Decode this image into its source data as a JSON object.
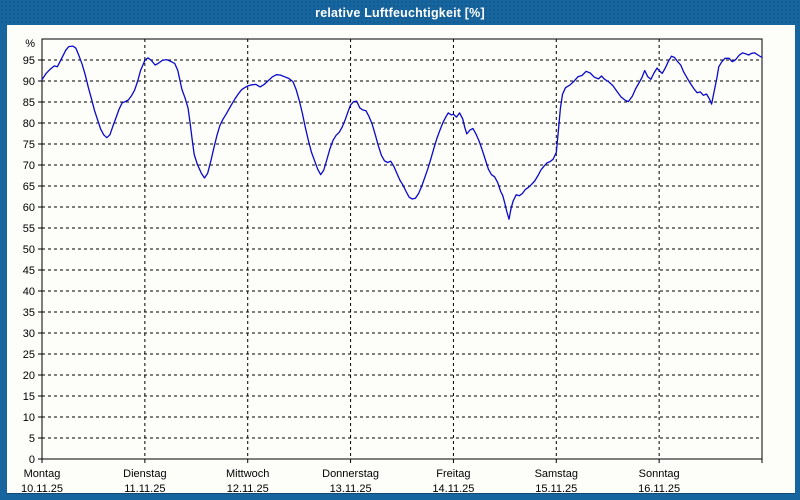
{
  "window": {
    "title": "relative Luftfeuchtigkeit [%]"
  },
  "chart_data": {
    "type": "line",
    "title": "relative Luftfeuchtigkeit [%]",
    "unit_label": "%",
    "ylabel": "relative Luftfeuchtigkeit",
    "ylim": [
      0,
      100
    ],
    "ytick_step": 5,
    "y_ticks": [
      0,
      5,
      10,
      15,
      20,
      25,
      30,
      35,
      40,
      45,
      50,
      55,
      60,
      65,
      70,
      75,
      80,
      85,
      90,
      95
    ],
    "grid": "dashed",
    "grid_color": "#000000",
    "line_color": "#0a0ac8",
    "background_color": "#fdfdfa",
    "frame_color": "#17659e",
    "x_days": [
      {
        "name": "Montag",
        "date": "10.11.25"
      },
      {
        "name": "Dienstag",
        "date": "11.11.25"
      },
      {
        "name": "Mittwoch",
        "date": "12.11.25"
      },
      {
        "name": "Donnerstag",
        "date": "13.11.25"
      },
      {
        "name": "Freitag",
        "date": "14.11.25"
      },
      {
        "name": "Samstag",
        "date": "15.11.25"
      },
      {
        "name": "Sonntag",
        "date": "16.11.25"
      }
    ],
    "series": [
      {
        "name": "relative Luftfeuchtigkeit [%]",
        "x_unit": "days since 10.11.25 00:00",
        "x": [
          0.0,
          0.04,
          0.08,
          0.12,
          0.15,
          0.19,
          0.23,
          0.26,
          0.3,
          0.33,
          0.36,
          0.39,
          0.42,
          0.45,
          0.48,
          0.51,
          0.54,
          0.57,
          0.6,
          0.63,
          0.66,
          0.69,
          0.72,
          0.75,
          0.78,
          0.81,
          0.84,
          0.87,
          0.9,
          0.93,
          0.96,
          1.0,
          1.03,
          1.06,
          1.1,
          1.13,
          1.17,
          1.21,
          1.25,
          1.29,
          1.32,
          1.34,
          1.36,
          1.39,
          1.42,
          1.44,
          1.46,
          1.48,
          1.51,
          1.55,
          1.58,
          1.61,
          1.64,
          1.67,
          1.7,
          1.73,
          1.76,
          1.79,
          1.82,
          1.85,
          1.88,
          1.91,
          1.94,
          1.97,
          2.0,
          2.04,
          2.08,
          2.12,
          2.16,
          2.2,
          2.24,
          2.28,
          2.32,
          2.36,
          2.4,
          2.44,
          2.47,
          2.5,
          2.53,
          2.56,
          2.59,
          2.62,
          2.65,
          2.68,
          2.71,
          2.74,
          2.77,
          2.8,
          2.83,
          2.86,
          2.89,
          2.92,
          2.95,
          2.98,
          3.0,
          3.03,
          3.06,
          3.09,
          3.12,
          3.15,
          3.18,
          3.21,
          3.24,
          3.27,
          3.3,
          3.33,
          3.36,
          3.39,
          3.42,
          3.45,
          3.48,
          3.51,
          3.54,
          3.57,
          3.6,
          3.63,
          3.66,
          3.69,
          3.72,
          3.75,
          3.78,
          3.81,
          3.84,
          3.87,
          3.9,
          3.93,
          3.95,
          3.98,
          4.0,
          4.03,
          4.06,
          4.09,
          4.11,
          4.13,
          4.16,
          4.19,
          4.22,
          4.25,
          4.28,
          4.31,
          4.34,
          4.37,
          4.4,
          4.43,
          4.46,
          4.48,
          4.5,
          4.52,
          4.54,
          4.56,
          4.58,
          4.61,
          4.64,
          4.67,
          4.7,
          4.73,
          4.76,
          4.79,
          4.82,
          4.85,
          4.88,
          4.91,
          4.94,
          4.97,
          5.0,
          5.02,
          5.04,
          5.06,
          5.09,
          5.13,
          5.17,
          5.21,
          5.25,
          5.29,
          5.33,
          5.37,
          5.41,
          5.44,
          5.47,
          5.51,
          5.55,
          5.59,
          5.63,
          5.67,
          5.7,
          5.74,
          5.77,
          5.8,
          5.83,
          5.86,
          5.89,
          5.92,
          5.95,
          5.98,
          6.0,
          6.03,
          6.06,
          6.09,
          6.12,
          6.15,
          6.18,
          6.21,
          6.24,
          6.28,
          6.31,
          6.34,
          6.37,
          6.4,
          6.43,
          6.46,
          6.49,
          6.51,
          6.53,
          6.56,
          6.58,
          6.61,
          6.64,
          6.68,
          6.71,
          6.74,
          6.78,
          6.81,
          6.84,
          6.87,
          6.9,
          6.93,
          6.96,
          7.0
        ],
        "y": [
          90.3,
          91.8,
          92.8,
          93.6,
          93.4,
          95.3,
          97.3,
          98.2,
          98.3,
          97.8,
          96.0,
          94.0,
          91.5,
          88.5,
          85.8,
          83.0,
          80.8,
          78.6,
          77.2,
          76.5,
          77.2,
          79.3,
          81.3,
          83.3,
          84.8,
          85.1,
          85.5,
          86.5,
          87.8,
          90.0,
          92.6,
          94.9,
          95.5,
          95.0,
          93.8,
          94.2,
          94.9,
          95.1,
          94.7,
          94.2,
          92.5,
          90.3,
          88.0,
          86.0,
          83.5,
          80.0,
          76.0,
          72.5,
          70.2,
          68.0,
          66.9,
          68.0,
          70.8,
          74.0,
          77.0,
          79.4,
          80.9,
          82.1,
          83.4,
          84.7,
          85.9,
          87.0,
          87.9,
          88.4,
          88.8,
          89.1,
          89.2,
          88.6,
          89.2,
          90.1,
          91.0,
          91.5,
          91.4,
          91.0,
          90.6,
          89.8,
          88.0,
          85.5,
          82.5,
          79.0,
          75.8,
          73.0,
          71.0,
          69.0,
          67.7,
          68.8,
          71.3,
          73.9,
          75.9,
          77.1,
          77.8,
          79.1,
          80.9,
          83.0,
          84.3,
          85.1,
          85.2,
          83.6,
          83.1,
          82.9,
          81.5,
          79.7,
          77.2,
          74.6,
          72.3,
          71.0,
          70.6,
          70.9,
          69.7,
          68.0,
          66.4,
          65.2,
          63.7,
          62.3,
          61.9,
          62.1,
          63.2,
          64.8,
          66.9,
          69.0,
          71.4,
          74.0,
          76.4,
          78.4,
          80.2,
          81.6,
          82.4,
          81.9,
          82.1,
          81.4,
          82.4,
          81.0,
          79.0,
          77.4,
          78.3,
          78.7,
          77.3,
          75.7,
          73.6,
          71.3,
          69.0,
          67.7,
          67.2,
          65.8,
          63.7,
          62.7,
          60.8,
          58.8,
          57.1,
          59.6,
          61.4,
          62.9,
          62.7,
          63.2,
          64.2,
          64.7,
          65.4,
          66.2,
          67.4,
          68.8,
          69.7,
          70.5,
          70.8,
          71.4,
          73.0,
          78.0,
          83.5,
          86.8,
          88.4,
          89.0,
          89.9,
          91.0,
          91.3,
          92.3,
          91.9,
          90.9,
          90.5,
          91.2,
          90.4,
          89.8,
          88.9,
          87.5,
          86.2,
          85.4,
          85.1,
          86.4,
          88.1,
          89.4,
          90.7,
          92.5,
          91.0,
          90.4,
          91.9,
          93.1,
          92.5,
          91.8,
          93.1,
          94.7,
          95.9,
          95.6,
          94.6,
          93.8,
          92.1,
          90.4,
          89.2,
          88.1,
          87.2,
          87.4,
          86.6,
          86.9,
          85.7,
          84.5,
          87.0,
          90.5,
          93.4,
          94.6,
          95.4,
          95.4,
          94.6,
          95.0,
          96.2,
          96.7,
          96.5,
          96.2,
          96.6,
          96.7,
          96.2,
          95.6
        ]
      }
    ]
  }
}
